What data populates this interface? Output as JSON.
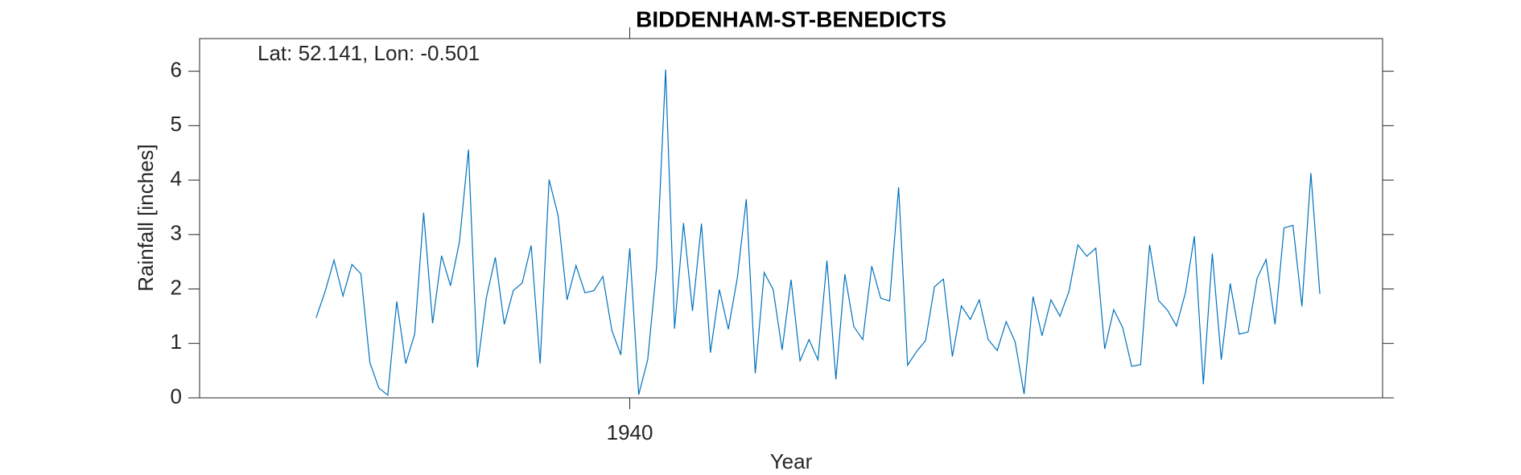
{
  "chart_data": {
    "type": "line",
    "title": "BIDDENHAM-ST-BENEDICTS",
    "annotation": "Lat: 52.141, Lon: -0.501",
    "xlabel": "Year",
    "ylabel": "Rainfall [inches]",
    "x": [
      1905,
      1906,
      1907,
      1908,
      1909,
      1910,
      1911,
      1912,
      1913,
      1914,
      1915,
      1916,
      1917,
      1918,
      1919,
      1920,
      1921,
      1922,
      1923,
      1924,
      1925,
      1926,
      1927,
      1928,
      1929,
      1930,
      1931,
      1932,
      1933,
      1934,
      1935,
      1936,
      1937,
      1938,
      1939,
      1940,
      1941,
      1942,
      1943,
      1944,
      1945,
      1946,
      1947,
      1948,
      1949,
      1950,
      1951,
      1952,
      1953,
      1954,
      1955,
      1956,
      1957,
      1958,
      1959,
      1960,
      1961,
      1962,
      1963,
      1964,
      1965,
      1966,
      1967,
      1968,
      1969,
      1970,
      1971,
      1972,
      1973,
      1974,
      1975,
      1976,
      1977,
      1978,
      1979,
      1980,
      1981,
      1982,
      1983,
      1984,
      1985,
      1986,
      1987,
      1988,
      1989,
      1990,
      1991,
      1992,
      1993,
      1994,
      1995,
      1996,
      1997,
      1998,
      1999,
      2000,
      2001,
      2002,
      2003,
      2004,
      2005,
      2006,
      2007,
      2008,
      2009,
      2010,
      2011,
      2012,
      2013,
      2014,
      2015,
      2016,
      2017
    ],
    "series": [
      {
        "name": "Rainfall",
        "color": "#0072bd",
        "values": [
          1.47,
          1.95,
          2.53,
          1.87,
          2.45,
          2.28,
          0.65,
          0.18,
          0.05,
          1.77,
          0.63,
          1.17,
          3.4,
          1.37,
          2.61,
          2.06,
          2.87,
          4.56,
          0.56,
          1.84,
          2.58,
          1.35,
          1.97,
          2.11,
          2.8,
          0.63,
          4.01,
          3.35,
          1.8,
          2.43,
          1.93,
          1.97,
          2.23,
          1.24,
          0.79,
          2.75,
          0.06,
          0.7,
          2.41,
          6.03,
          1.27,
          3.21,
          1.6,
          3.2,
          0.83,
          1.99,
          1.26,
          2.2,
          3.65,
          0.45,
          2.3,
          1.99,
          0.88,
          2.17,
          0.68,
          1.07,
          0.7,
          2.52,
          0.34,
          2.27,
          1.31,
          1.07,
          2.42,
          1.83,
          1.78,
          3.87,
          0.6,
          0.85,
          1.05,
          2.04,
          2.18,
          0.76,
          1.69,
          1.44,
          1.8,
          1.07,
          0.87,
          1.4,
          1.03,
          0.07,
          1.86,
          1.14,
          1.8,
          1.5,
          1.95,
          2.81,
          2.6,
          2.75,
          0.9,
          1.62,
          1.29,
          0.58,
          0.61,
          2.81,
          1.79,
          1.61,
          1.32,
          1.93,
          2.97,
          0.25,
          2.65,
          0.7,
          2.1,
          1.17,
          1.21,
          2.2,
          2.54,
          1.35,
          3.12,
          3.17,
          1.68,
          4.13,
          1.91
        ]
      }
    ],
    "xlim": [
      1892,
      2024
    ],
    "xticks": [
      1940
    ],
    "ylim": [
      0,
      6.6
    ],
    "yticks": [
      0,
      1,
      2,
      3,
      4,
      5,
      6
    ]
  }
}
